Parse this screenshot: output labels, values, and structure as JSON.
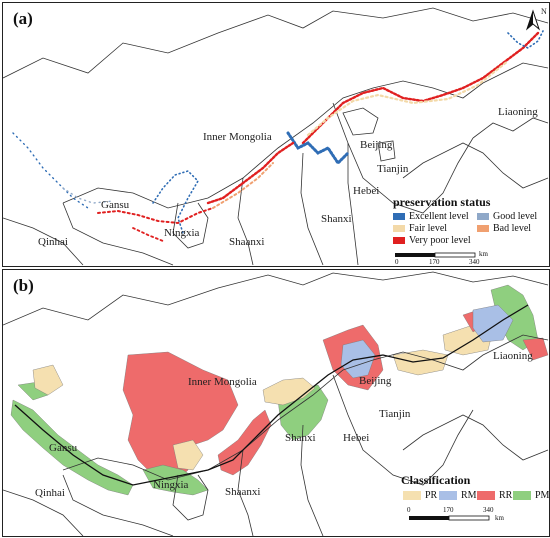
{
  "panel_a": {
    "label": "(a)",
    "places": {
      "inner_mongolia": "Inner Mongolia",
      "liaoning": "Liaoning",
      "beijing": "Beijing",
      "tianjin": "Tianjin",
      "hebei": "Hebei",
      "shanxi": "Shanxi",
      "shaanxi": "Shaanxi",
      "ningxia": "Ningxia",
      "gansu": "Gansu",
      "qinhai": "Qinhai"
    },
    "legend": {
      "title": "preservation status",
      "items": [
        {
          "label": "Excellent level",
          "color": "#2f6db5"
        },
        {
          "label": "Good level",
          "color": "#8fa8c8"
        },
        {
          "label": "Fair level",
          "color": "#f3d9a8"
        },
        {
          "label": "Bad level",
          "color": "#f0a070"
        },
        {
          "label": "Very poor level",
          "color": "#e02020"
        }
      ]
    },
    "scale": {
      "ticks": [
        "0",
        "170",
        "340"
      ],
      "unit": "km"
    },
    "north_label": "N"
  },
  "panel_b": {
    "label": "(b)",
    "places": {
      "inner_mongolia": "Inner Mongolia",
      "liaoning": "Liaoning",
      "beijing": "Beijing",
      "tianjin": "Tianjin",
      "hebei": "Hebei",
      "shanxi": "Shanxi",
      "shaanxi": "Shaanxi",
      "ningxia": "Ningxia",
      "gansu": "Gansu",
      "qinhai": "Qinhai"
    },
    "legend": {
      "title": "Classification",
      "items": [
        {
          "label": "PR",
          "color": "#f5e0b0"
        },
        {
          "label": "RM",
          "color": "#a9bfe6"
        },
        {
          "label": "RR",
          "color": "#ee6b6b"
        },
        {
          "label": "PM",
          "color": "#8fcf7f"
        }
      ]
    },
    "scale": {
      "ticks": [
        "0",
        "170",
        "340"
      ],
      "unit": "km"
    }
  }
}
